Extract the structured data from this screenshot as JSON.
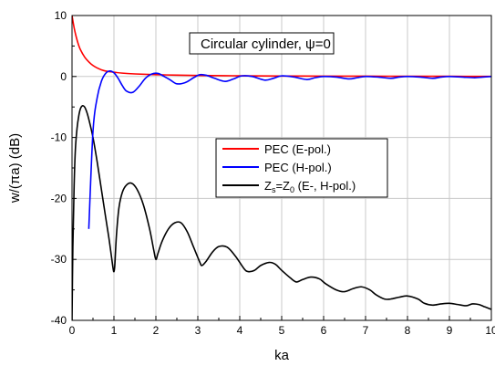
{
  "chart_data": {
    "type": "line",
    "title": "",
    "xlabel": "ka",
    "ylabel": "w/(πa) (dB)",
    "xlim": [
      0,
      10
    ],
    "ylim": [
      -40,
      10
    ],
    "xticks": [
      0,
      1,
      2,
      3,
      4,
      5,
      6,
      7,
      8,
      9,
      10
    ],
    "yticks": [
      -40,
      -30,
      -20,
      -10,
      0,
      10
    ],
    "xtick_labels": [
      "0",
      "1",
      "2",
      "3",
      "4",
      "5",
      "6",
      "7",
      "8",
      "9",
      "10"
    ],
    "ytick_labels": [
      "-40",
      "-30",
      "-20",
      "-10",
      "0",
      "10"
    ],
    "grid": true,
    "annotation": {
      "text_main": "Circular cylinder, ",
      "text_symbol": "ψ",
      "text_end": "=0"
    },
    "legend": {
      "placement": "center-right",
      "entries": [
        {
          "label": "PEC (E-pol.)"
        },
        {
          "label": "PEC (H-pol.)"
        },
        {
          "label_z1": "Z",
          "label_sub1": "s",
          "label_eq": "=Z",
          "label_sub2": "0",
          "label_rest": " (E-, H-pol.)"
        }
      ]
    },
    "series": [
      {
        "id": "pec-e",
        "color": "#ff0000",
        "x": [
          0.0,
          0.05,
          0.1,
          0.15,
          0.2,
          0.3,
          0.4,
          0.5,
          0.6,
          0.7,
          0.8,
          1.0,
          1.2,
          1.5,
          2.0,
          2.5,
          3.0,
          4.0,
          5.0,
          6.0,
          7.0,
          8.0,
          9.0,
          10.0
        ],
        "y": [
          10.0,
          8.0,
          6.5,
          5.3,
          4.4,
          3.2,
          2.4,
          1.8,
          1.4,
          1.1,
          0.9,
          0.7,
          0.55,
          0.42,
          0.3,
          0.22,
          0.17,
          0.11,
          0.08,
          0.06,
          0.05,
          0.04,
          0.03,
          0.02
        ]
      },
      {
        "id": "pec-h",
        "color": "#0000ff",
        "x": [
          0.4,
          0.5,
          0.6,
          0.7,
          0.8,
          0.9,
          1.0,
          1.1,
          1.2,
          1.3,
          1.45,
          1.6,
          1.75,
          1.9,
          2.05,
          2.2,
          2.35,
          2.5,
          2.7,
          2.9,
          3.05,
          3.2,
          3.4,
          3.65,
          3.85,
          4.05,
          4.3,
          4.6,
          4.8,
          5.0,
          5.3,
          5.6,
          5.8,
          6.0,
          6.3,
          6.6,
          6.8,
          7.0,
          7.3,
          7.6,
          7.8,
          8.0,
          8.3,
          8.6,
          8.8,
          9.0,
          9.3,
          9.6,
          9.8,
          10.0
        ],
        "y": [
          -25.0,
          -9.0,
          -3.5,
          -0.8,
          0.5,
          0.9,
          0.6,
          -0.3,
          -1.5,
          -2.4,
          -2.6,
          -1.6,
          -0.3,
          0.4,
          0.5,
          0.0,
          -0.6,
          -1.2,
          -1.0,
          -0.2,
          0.3,
          0.2,
          -0.3,
          -0.8,
          -0.4,
          0.1,
          0.0,
          -0.6,
          -0.3,
          0.1,
          -0.1,
          -0.5,
          -0.2,
          0.0,
          -0.1,
          -0.4,
          -0.2,
          0.0,
          -0.1,
          -0.3,
          -0.1,
          0.0,
          -0.1,
          -0.3,
          -0.1,
          0.0,
          -0.1,
          -0.2,
          -0.1,
          0.0
        ]
      },
      {
        "id": "zs-z0",
        "color": "#000000",
        "x": [
          0.0,
          0.02,
          0.05,
          0.08,
          0.12,
          0.16,
          0.2,
          0.25,
          0.3,
          0.35,
          0.4,
          0.5,
          0.6,
          0.7,
          0.8,
          0.88,
          0.94,
          0.98,
          1.0,
          1.02,
          1.06,
          1.12,
          1.2,
          1.3,
          1.42,
          1.55,
          1.7,
          1.85,
          1.95,
          2.0,
          2.05,
          2.15,
          2.3,
          2.45,
          2.6,
          2.75,
          2.9,
          3.05,
          3.1,
          3.2,
          3.35,
          3.5,
          3.7,
          3.9,
          4.1,
          4.2,
          4.35,
          4.5,
          4.7,
          4.85,
          5.0,
          5.2,
          5.35,
          5.5,
          5.7,
          5.9,
          6.05,
          6.3,
          6.5,
          6.7,
          6.9,
          7.1,
          7.25,
          7.45,
          7.6,
          7.8,
          8.0,
          8.25,
          8.4,
          8.6,
          8.8,
          9.0,
          9.2,
          9.4,
          9.55,
          9.7,
          9.85,
          10.0
        ],
        "y": [
          -40.0,
          -28.0,
          -18.0,
          -12.0,
          -8.5,
          -6.5,
          -5.3,
          -4.8,
          -5.0,
          -5.8,
          -7.0,
          -10.0,
          -14.0,
          -18.5,
          -23.0,
          -26.5,
          -29.5,
          -31.5,
          -32.0,
          -31.0,
          -26.0,
          -21.5,
          -19.0,
          -17.8,
          -17.5,
          -18.5,
          -21.0,
          -25.0,
          -28.5,
          -30.0,
          -29.0,
          -27.0,
          -25.0,
          -24.0,
          -24.0,
          -25.5,
          -28.0,
          -30.5,
          -31.0,
          -30.3,
          -28.8,
          -27.9,
          -28.0,
          -29.5,
          -31.5,
          -32.0,
          -31.8,
          -31.0,
          -30.5,
          -30.8,
          -31.8,
          -33.0,
          -33.7,
          -33.3,
          -32.9,
          -33.2,
          -34.0,
          -35.0,
          -35.3,
          -34.8,
          -34.5,
          -35.0,
          -35.8,
          -36.5,
          -36.5,
          -36.2,
          -36.0,
          -36.5,
          -37.2,
          -37.5,
          -37.3,
          -37.2,
          -37.4,
          -37.6,
          -37.3,
          -37.4,
          -37.8,
          -38.2
        ]
      }
    ]
  }
}
